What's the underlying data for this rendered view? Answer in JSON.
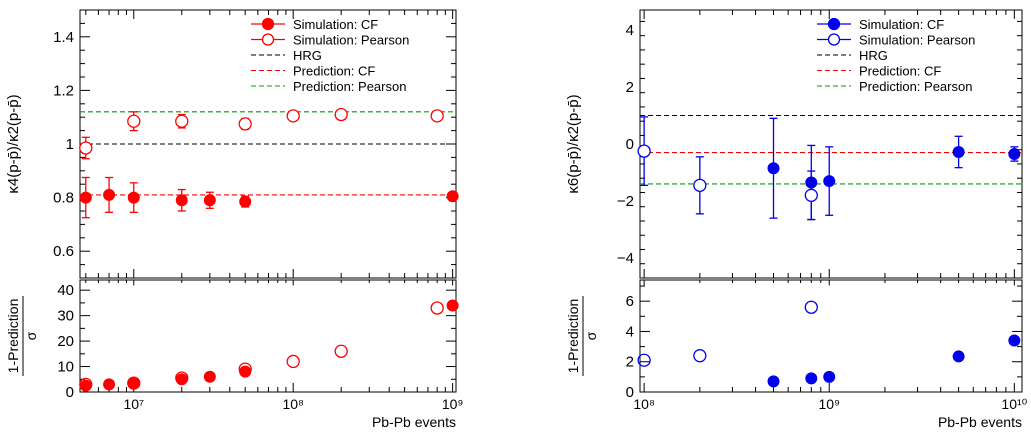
{
  "chart_data": [
    {
      "type": "scatter",
      "xscale": "log",
      "xlim": [
        4600000.0,
        1050000000.0
      ],
      "ylim": [
        0.5,
        1.5
      ],
      "ylabel": "κ4(p-p̄)/κ2(p-p̄)",
      "xlabel": "Pb-Pb events",
      "color": "#ff0000",
      "y_ticks": [
        {
          "v": 0.6,
          "label": "0.6"
        },
        {
          "v": 0.8,
          "label": "0.8"
        },
        {
          "v": 1.0,
          "label": "1"
        },
        {
          "v": 1.2,
          "label": "1.2"
        },
        {
          "v": 1.4,
          "label": "1.4"
        }
      ],
      "x_ticks": [
        {
          "v": 10000000.0,
          "label": "10⁷"
        },
        {
          "v": 100000000.0,
          "label": "10⁸"
        },
        {
          "v": 1000000000.0,
          "label": "10⁹"
        }
      ],
      "legend": [
        {
          "label": "Simulation: CF",
          "kind": "filled"
        },
        {
          "label": "Simulation: Pearson",
          "kind": "open"
        },
        {
          "label": "HRG",
          "kind": "line",
          "color": "#000000"
        },
        {
          "label": "Prediction: CF",
          "kind": "line",
          "color": "#ff0000"
        },
        {
          "label": "Prediction: Pearson",
          "kind": "line",
          "color": "#00a000"
        }
      ],
      "ref_lines": [
        {
          "name": "HRG",
          "y": 1.0,
          "color": "#000000"
        },
        {
          "name": "Prediction: CF",
          "y": 0.81,
          "color": "#ff0000"
        },
        {
          "name": "Prediction: Pearson",
          "y": 1.12,
          "color": "#00a000"
        }
      ],
      "series": [
        {
          "name": "Simulation: CF",
          "kind": "filled",
          "points": [
            {
              "x": 5000000.0,
              "y": 0.8,
              "err": 0.075
            },
            {
              "x": 7000000.0,
              "y": 0.81,
              "err": 0.065
            },
            {
              "x": 10000000.0,
              "y": 0.8,
              "err": 0.055
            },
            {
              "x": 20000000.0,
              "y": 0.79,
              "err": 0.04
            },
            {
              "x": 30000000.0,
              "y": 0.79,
              "err": 0.03
            },
            {
              "x": 50000000.0,
              "y": 0.785,
              "err": 0.02
            },
            {
              "x": 1000000000.0,
              "y": 0.805,
              "err": 0.005
            }
          ]
        },
        {
          "name": "Simulation: Pearson",
          "kind": "open",
          "points": [
            {
              "x": 5000000.0,
              "y": 0.985,
              "err": 0.04
            },
            {
              "x": 10000000.0,
              "y": 1.085,
              "err": 0.035
            },
            {
              "x": 20000000.0,
              "y": 1.085,
              "err": 0.025
            },
            {
              "x": 50000000.0,
              "y": 1.075,
              "err": 0.02
            },
            {
              "x": 100000000.0,
              "y": 1.105,
              "err": 0.015
            },
            {
              "x": 200000000.0,
              "y": 1.11,
              "err": 0.012
            },
            {
              "x": 800000000.0,
              "y": 1.105,
              "err": 0.008
            }
          ]
        }
      ],
      "ratio": {
        "ylabel_top": "1-Prediction",
        "ylabel_bottom": "σ",
        "ylim": [
          0,
          44
        ],
        "y_ticks": [
          {
            "v": 0,
            "label": "0"
          },
          {
            "v": 10,
            "label": "10"
          },
          {
            "v": 20,
            "label": "20"
          },
          {
            "v": 30,
            "label": "30"
          },
          {
            "v": 40,
            "label": "40"
          }
        ],
        "series": [
          {
            "name": "Simulation: CF",
            "kind": "filled",
            "points": [
              {
                "x": 5000000.0,
                "y": 2.5
              },
              {
                "x": 7000000.0,
                "y": 3.0
              },
              {
                "x": 10000000.0,
                "y": 3.3
              },
              {
                "x": 20000000.0,
                "y": 5.0
              },
              {
                "x": 30000000.0,
                "y": 6.0
              },
              {
                "x": 50000000.0,
                "y": 8.0
              },
              {
                "x": 1000000000.0,
                "y": 34.0
              }
            ]
          },
          {
            "name": "Simulation: Pearson",
            "kind": "open",
            "points": [
              {
                "x": 5000000.0,
                "y": 3.0
              },
              {
                "x": 10000000.0,
                "y": 3.5
              },
              {
                "x": 20000000.0,
                "y": 5.5
              },
              {
                "x": 50000000.0,
                "y": 9.0
              },
              {
                "x": 100000000.0,
                "y": 12.0
              },
              {
                "x": 200000000.0,
                "y": 16.0
              },
              {
                "x": 800000000.0,
                "y": 33.0
              }
            ]
          }
        ]
      }
    },
    {
      "type": "scatter",
      "xscale": "log",
      "xlim": [
        95000000.0,
        11000000000.0
      ],
      "ylim": [
        -4.7,
        4.7
      ],
      "ylabel": "κ6(p-p̄)/κ2(p-p̄)",
      "xlabel": "Pb-Pb events",
      "color": "#0000ee",
      "y_ticks": [
        {
          "v": -4,
          "label": "−4"
        },
        {
          "v": -2,
          "label": "−2"
        },
        {
          "v": 0,
          "label": "0"
        },
        {
          "v": 2,
          "label": "2"
        },
        {
          "v": 4,
          "label": "4"
        }
      ],
      "x_ticks": [
        {
          "v": 100000000.0,
          "label": "10⁸"
        },
        {
          "v": 1000000000.0,
          "label": "10⁹"
        },
        {
          "v": 10000000000.0,
          "label": "10¹⁰"
        }
      ],
      "legend": [
        {
          "label": "Simulation: CF",
          "kind": "filled"
        },
        {
          "label": "Simulation: Pearson",
          "kind": "open"
        },
        {
          "label": "HRG",
          "kind": "line",
          "color": "#000000"
        },
        {
          "label": "Prediction: CF",
          "kind": "line",
          "color": "#ff0000"
        },
        {
          "label": "Prediction: Pearson",
          "kind": "line",
          "color": "#00a000"
        }
      ],
      "ref_lines": [
        {
          "name": "HRG",
          "y": 1.0,
          "color": "#000000"
        },
        {
          "name": "Prediction: CF",
          "y": -0.3,
          "color": "#ff0000"
        },
        {
          "name": "Prediction: Pearson",
          "y": -1.4,
          "color": "#00a000"
        }
      ],
      "series": [
        {
          "name": "Simulation: CF",
          "kind": "filled",
          "points": [
            {
              "x": 500000000.0,
              "y": -0.85,
              "err": 1.75
            },
            {
              "x": 800000000.0,
              "y": -1.35,
              "err": 1.3
            },
            {
              "x": 1000000000.0,
              "y": -1.3,
              "err": 1.2
            },
            {
              "x": 5000000000.0,
              "y": -0.28,
              "err": 0.55
            },
            {
              "x": 10000000000.0,
              "y": -0.35,
              "err": 0.25
            }
          ]
        },
        {
          "name": "Simulation: Pearson",
          "kind": "open",
          "points": [
            {
              "x": 100000000.0,
              "y": -0.25,
              "err": 1.2
            },
            {
              "x": 200000000.0,
              "y": -1.45,
              "err": 1.0
            },
            {
              "x": 800000000.0,
              "y": -1.8,
              "err": 0.85
            }
          ]
        }
      ],
      "ratio": {
        "ylabel_top": "1-Prediction",
        "ylabel_bottom": "σ",
        "ylim": [
          0,
          7.4
        ],
        "y_ticks": [
          {
            "v": 0,
            "label": "0"
          },
          {
            "v": 2,
            "label": "2"
          },
          {
            "v": 4,
            "label": "4"
          },
          {
            "v": 6,
            "label": "6"
          }
        ],
        "series": [
          {
            "name": "Simulation: CF",
            "kind": "filled",
            "points": [
              {
                "x": 500000000.0,
                "y": 0.7
              },
              {
                "x": 800000000.0,
                "y": 0.9
              },
              {
                "x": 1000000000.0,
                "y": 1.0
              },
              {
                "x": 5000000000.0,
                "y": 2.35
              },
              {
                "x": 10000000000.0,
                "y": 3.4
              }
            ]
          },
          {
            "name": "Simulation: Pearson",
            "kind": "open",
            "points": [
              {
                "x": 100000000.0,
                "y": 2.1
              },
              {
                "x": 200000000.0,
                "y": 2.4
              },
              {
                "x": 800000000.0,
                "y": 5.6
              }
            ]
          }
        ]
      }
    }
  ]
}
